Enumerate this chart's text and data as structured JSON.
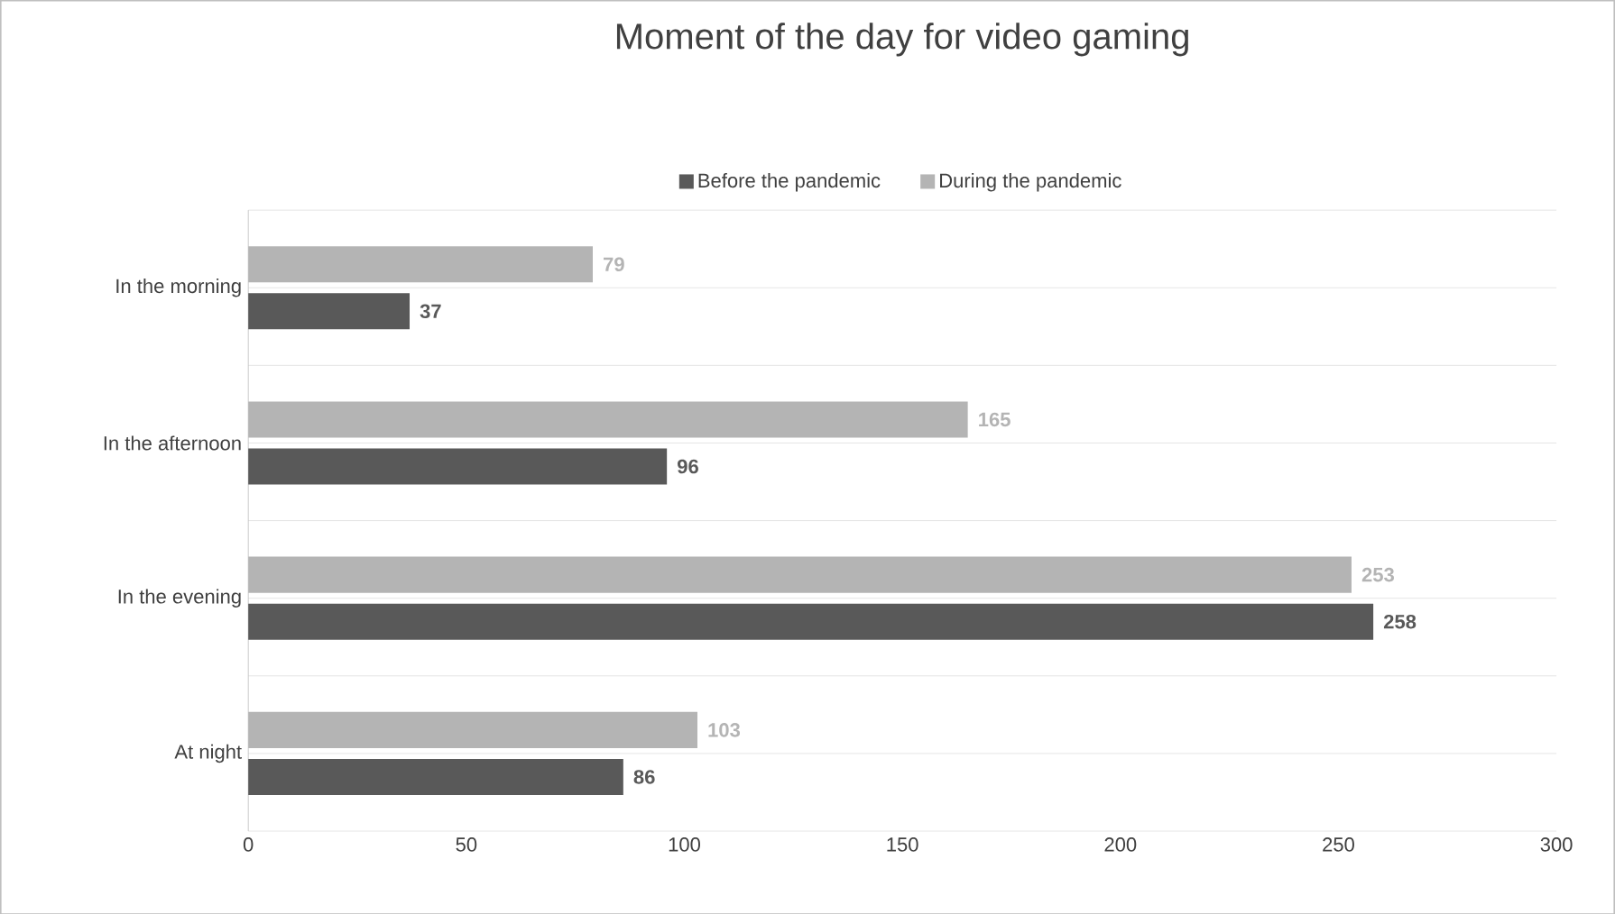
{
  "chart_data": {
    "type": "bar",
    "orientation": "horizontal",
    "title": "Moment of the day for video gaming",
    "categories": [
      "In the morning",
      "In the afternoon",
      "In the evening",
      "At night"
    ],
    "series": [
      {
        "name": "Before the pandemic",
        "color": "#595959",
        "values": [
          37,
          96,
          258,
          86
        ]
      },
      {
        "name": "During the pandemic",
        "color": "#b4b4b4",
        "values": [
          79,
          165,
          253,
          103
        ]
      }
    ],
    "xlim": [
      0,
      300
    ],
    "xticks": [
      0,
      50,
      100,
      150,
      200,
      250,
      300
    ],
    "grid": "y",
    "legend": "top",
    "data_labels": true
  }
}
